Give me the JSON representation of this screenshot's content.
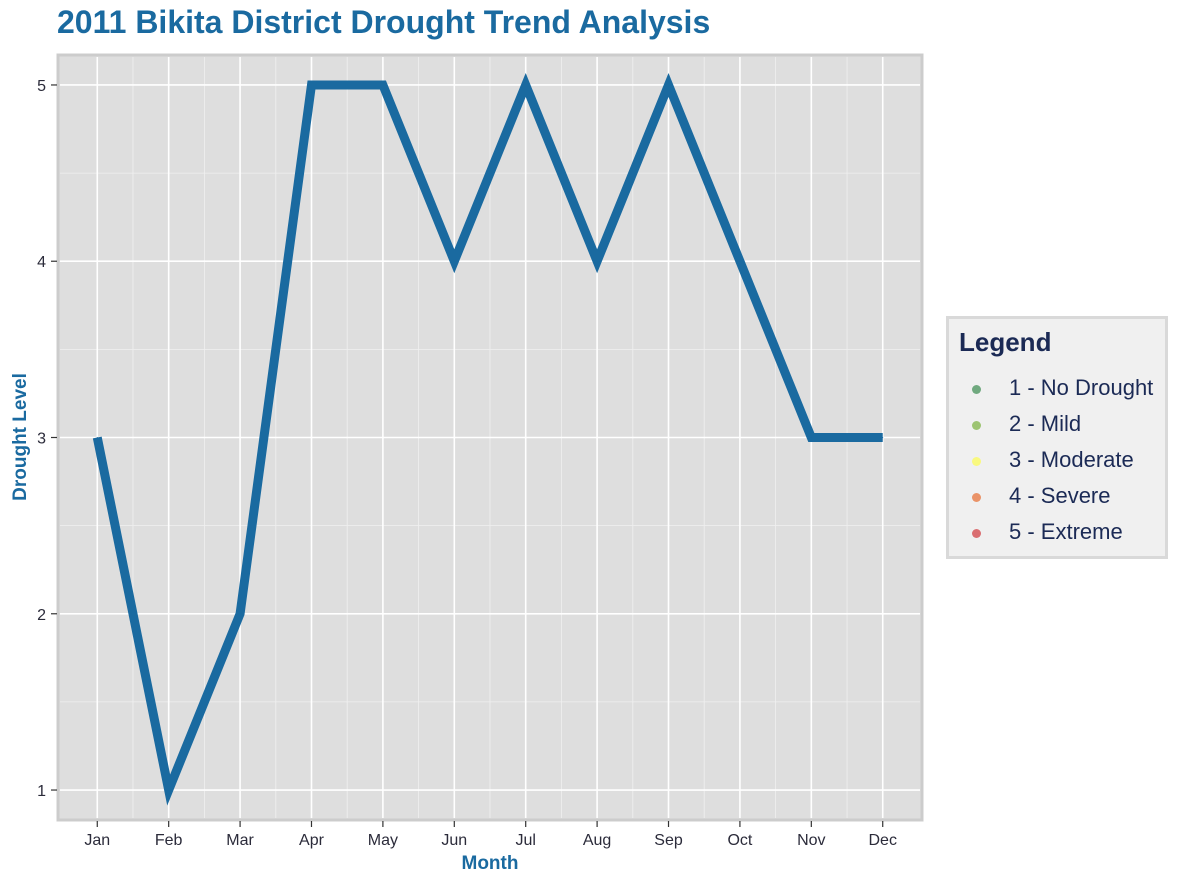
{
  "chart_data": {
    "type": "line",
    "title": "2011 Bikita District Drought Trend Analysis",
    "xlabel": "Month",
    "ylabel": "Drought Level",
    "categories": [
      "Jan",
      "Feb",
      "Mar",
      "Apr",
      "May",
      "Jun",
      "Jul",
      "Aug",
      "Sep",
      "Oct",
      "Nov",
      "Dec"
    ],
    "series": [
      {
        "values": [
          3,
          1,
          2,
          5,
          5,
          4,
          5,
          4,
          5,
          4,
          3,
          3
        ],
        "color": "#1a6aa0"
      }
    ],
    "yticks": [
      "1",
      "2",
      "3",
      "4",
      "5"
    ],
    "ylim": [
      0.83,
      5.17
    ],
    "grid": true,
    "legend_position": "right",
    "legend": {
      "title": "Legend",
      "items": [
        {
          "label": "1 - No Drought",
          "color": "#1a7a33"
        },
        {
          "label": "2 - Mild",
          "color": "#66a61e"
        },
        {
          "label": "3 - Moderate",
          "color": "#ffff33"
        },
        {
          "label": "4 - Severe",
          "color": "#e6550d"
        },
        {
          "label": "5 - Extreme",
          "color": "#cb181d"
        }
      ]
    }
  }
}
